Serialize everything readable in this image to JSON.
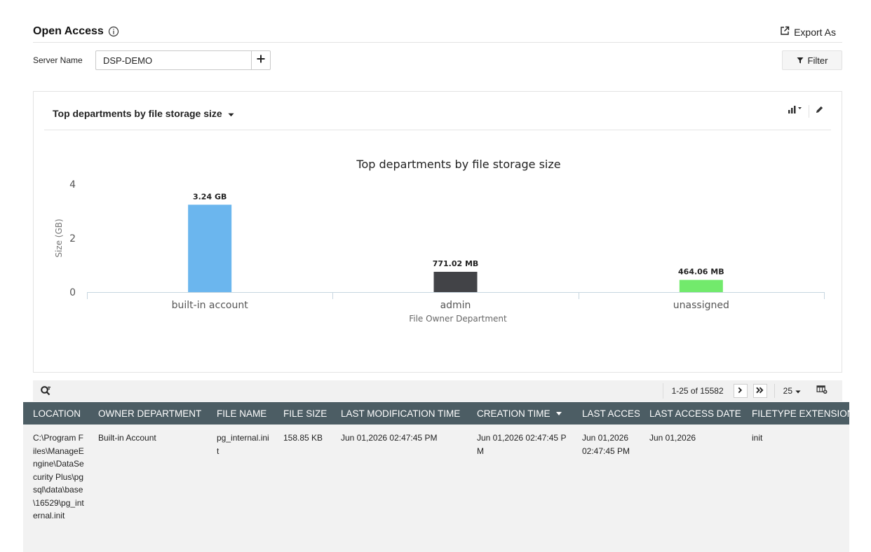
{
  "header": {
    "title": "Open Access",
    "export_label": "Export As"
  },
  "server": {
    "label": "Server Name",
    "value": "DSP-DEMO",
    "filter_label": "Filter"
  },
  "card": {
    "title": "Top departments by file storage size"
  },
  "chart_data": {
    "type": "bar",
    "title": "Top departments by file storage size",
    "xlabel": "File Owner Department",
    "ylabel": "Size (GB)",
    "ylim": [
      0,
      4
    ],
    "yticks": [
      0,
      2,
      4
    ],
    "categories": [
      "built-in account",
      "admin",
      "unassigned"
    ],
    "values": [
      3.24,
      0.753,
      0.453
    ],
    "data_labels": [
      "3.24 GB",
      "771.02 MB",
      "464.06 MB"
    ],
    "colors": [
      "#6bb6ee",
      "#424347",
      "#72ea6c"
    ],
    "grid": false
  },
  "grid_toolbar": {
    "range": "1-25 of 15582",
    "per_page": "25"
  },
  "table": {
    "columns": [
      "LOCATION",
      "OWNER DEPARTMENT",
      "FILE NAME",
      "FILE SIZE",
      "LAST MODIFICATION TIME",
      "CREATION TIME",
      "LAST ACCESS",
      "LAST ACCESS DATE",
      "FILETYPE EXTENSION"
    ],
    "rows": [
      [
        "C:\\Program Files\\ManageEngine\\DataSecurity Plus\\pgsql\\data\\base\\16529\\pg_internal.init",
        "Built-in Account",
        "pg_internal.init",
        "158.85 KB",
        "Jun 01,2026 02:47:45 PM",
        "Jun 01,2026 02:47:45 PM",
        "Jun 01,2026 02:47:45 PM",
        "Jun 01,2026",
        "init"
      ]
    ]
  }
}
